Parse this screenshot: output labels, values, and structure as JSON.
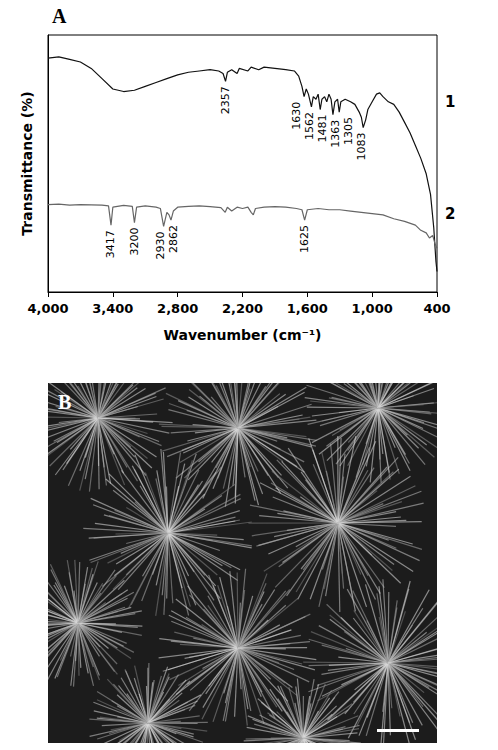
{
  "chart_data": {
    "type": "line",
    "panel": "A",
    "x_label": "Wavenumber (cm⁻¹)",
    "y_label": "Transmittance (%)",
    "xlim": [
      4000,
      400
    ],
    "xticks": [
      4000,
      3400,
      2800,
      2200,
      1600,
      1000,
      400
    ],
    "ylim": [
      0,
      100
    ],
    "yticks": [],
    "tick_labels": "x",
    "grid": false,
    "series": [
      {
        "name": "1",
        "color": "#111111",
        "x": [
          4000,
          3900,
          3800,
          3700,
          3600,
          3500,
          3400,
          3300,
          3200,
          3100,
          3000,
          2900,
          2800,
          2700,
          2600,
          2500,
          2420,
          2380,
          2357,
          2340,
          2300,
          2250,
          2230,
          2150,
          2120,
          2050,
          2000,
          1900,
          1800,
          1720,
          1680,
          1650,
          1630,
          1610,
          1590,
          1562,
          1545,
          1520,
          1500,
          1481,
          1465,
          1440,
          1420,
          1400,
          1380,
          1363,
          1345,
          1320,
          1305,
          1290,
          1250,
          1200,
          1160,
          1120,
          1100,
          1083,
          1060,
          1040,
          1000,
          960,
          930,
          900,
          850,
          800,
          750,
          700,
          650,
          600,
          550,
          500,
          460,
          430,
          410,
          400
        ],
        "values": [
          91,
          91.5,
          90.5,
          89.5,
          87,
          83,
          79,
          78,
          78.5,
          80,
          81.5,
          83,
          84.5,
          85.5,
          86,
          86.5,
          86,
          85,
          82,
          85.5,
          86.5,
          85,
          87,
          86,
          87.5,
          86.5,
          87.5,
          87,
          86.5,
          86,
          84,
          80,
          76,
          79,
          77,
          72,
          76,
          75,
          77,
          71,
          75,
          76,
          74,
          77,
          75,
          69,
          74,
          75,
          70,
          74,
          75,
          74,
          73,
          70,
          68,
          64,
          67,
          71,
          74,
          77,
          77.5,
          76,
          74,
          73,
          70,
          66,
          62,
          57,
          52,
          46,
          38,
          25,
          12,
          8
        ],
        "annotations": [
          2357,
          1630,
          1562,
          1481,
          1363,
          1305,
          1083
        ]
      },
      {
        "name": "2",
        "color": "#666666",
        "x": [
          4000,
          3900,
          3800,
          3700,
          3600,
          3500,
          3440,
          3417,
          3400,
          3300,
          3220,
          3200,
          3180,
          3100,
          3000,
          2960,
          2930,
          2900,
          2880,
          2862,
          2840,
          2800,
          2700,
          2600,
          2500,
          2400,
          2360,
          2340,
          2300,
          2250,
          2200,
          2150,
          2120,
          2100,
          2080,
          2000,
          1900,
          1800,
          1700,
          1650,
          1625,
          1600,
          1500,
          1400,
          1300,
          1200,
          1100,
          1000,
          900,
          800,
          700,
          600,
          550,
          500,
          470,
          440,
          420,
          400
        ],
        "values": [
          34,
          34.2,
          33.8,
          34,
          33.9,
          33.8,
          33.5,
          26,
          33,
          33.7,
          33.3,
          27,
          33,
          33.5,
          33,
          32.5,
          25.5,
          31,
          30,
          28,
          31.5,
          33,
          33.3,
          33.5,
          33.2,
          32.8,
          31,
          33,
          31.5,
          33,
          32.5,
          33,
          31,
          30,
          32.5,
          33,
          33.2,
          33,
          32.5,
          32,
          28,
          32,
          32.5,
          32,
          32,
          31.5,
          31,
          30.5,
          30,
          28.5,
          27.5,
          26,
          24,
          23,
          21,
          22,
          19,
          17
        ],
        "annotations": [
          3417,
          3200,
          2930,
          2862,
          1625
        ]
      }
    ]
  },
  "micrograph": {
    "panel": "B"
  }
}
